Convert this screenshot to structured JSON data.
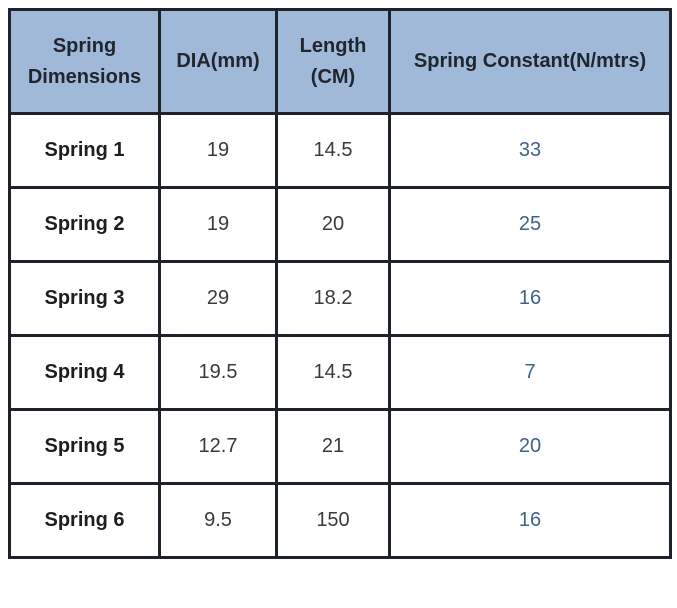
{
  "colors": {
    "header_background": "#a0b9d9",
    "border": "#1e222b",
    "header_text": "#21252e",
    "row_label_text": "#1e1e1e",
    "numeric_text": "#3a3a3a",
    "spring_constant_text": "#426189",
    "page_background": "#ffffff"
  },
  "chart_data": {
    "type": "table",
    "title": "Spring Dimensions",
    "columns": [
      "Spring Dimensions",
      "DIA(mm)",
      "Length (CM)",
      "Spring Constant(N/mtrs)"
    ],
    "rows": [
      {
        "label": "Spring 1",
        "values": [
          19,
          14.5,
          33
        ]
      },
      {
        "label": "Spring 2",
        "values": [
          19,
          20,
          25
        ]
      },
      {
        "label": "Spring 3",
        "values": [
          29,
          18.2,
          16
        ]
      },
      {
        "label": "Spring 4",
        "values": [
          19.5,
          14.5,
          7
        ]
      },
      {
        "label": "Spring 5",
        "values": [
          12.7,
          21,
          20
        ]
      },
      {
        "label": "Spring 6",
        "values": [
          9.5,
          150,
          16
        ]
      }
    ]
  }
}
